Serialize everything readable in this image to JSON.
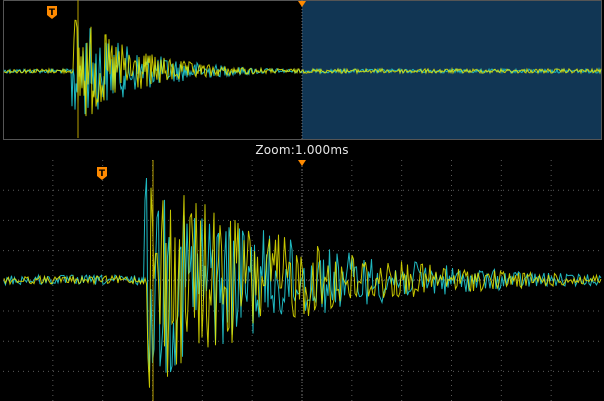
{
  "zoom": {
    "label": "Zoom:1.000ms"
  },
  "trigger": {
    "marker_glyph": "T"
  },
  "colors": {
    "trigger_marker": "#ff8a00",
    "channel_yellow": "#e8e800",
    "channel_cyan": "#1fb8c0",
    "zoom_window": "#113654",
    "grid": "#5a5a5a"
  },
  "icons": [
    "trigger-level-icon",
    "trigger-position-icon"
  ]
}
